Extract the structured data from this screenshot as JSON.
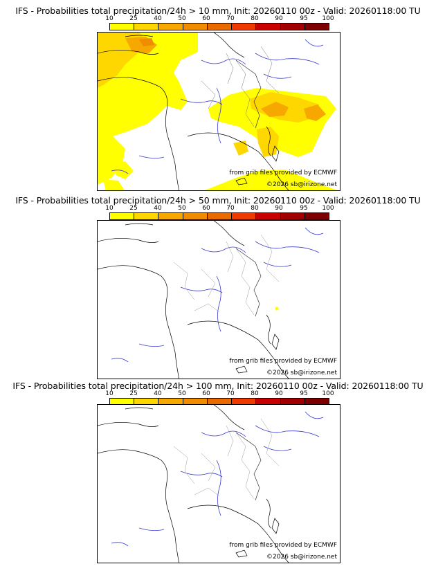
{
  "colorbar": {
    "labels": [
      "10",
      "25",
      "40",
      "50",
      "60",
      "70",
      "80",
      "90",
      "95",
      "100"
    ],
    "colors": [
      "#ffff00",
      "#ffd700",
      "#f6a800",
      "#f08c00",
      "#e96b00",
      "#ee3a00",
      "#c80000",
      "#a00000",
      "#7d0000"
    ]
  },
  "panels": [
    {
      "title": "IFS - Probabilities total precipitation/24h > 10 mm, Init: 20260110 00z - Valid: 20260118:00 TU",
      "credit_source": "from grib files provided by ECMWF",
      "credit_copyright": "©2026 sb@irizone.net",
      "has_field": true
    },
    {
      "title": "IFS - Probabilities total precipitation/24h > 50 mm, Init: 20260110 00z - Valid: 20260118:00 TU",
      "credit_source": "from grib files provided by ECMWF",
      "credit_copyright": "©2026 sb@irizone.net",
      "has_field": false
    },
    {
      "title": "IFS - Probabilities total precipitation/24h > 100 mm, Init: 20260110 00z - Valid: 20260118:00 TU",
      "credit_source": "from grib files provided by ECMWF",
      "credit_copyright": "©2026 sb@irizone.net",
      "has_field": false
    }
  ]
}
